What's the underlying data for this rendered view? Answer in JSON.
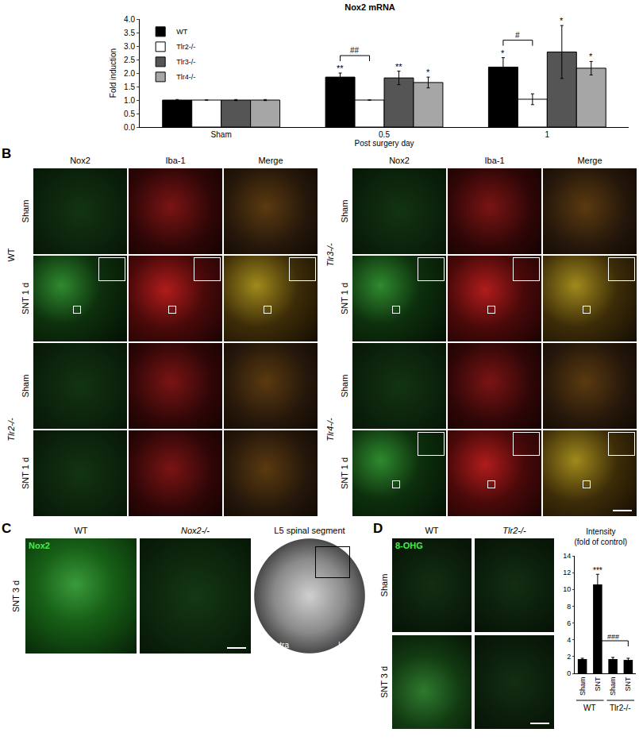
{
  "chart_data": [
    {
      "type": "bar",
      "panel": "A",
      "title": "Nox2 mRNA",
      "x_label": "Post surgery day",
      "y_label": "Fold induction",
      "categories": [
        "Sham",
        "0.5",
        "1"
      ],
      "series": [
        {
          "name": "WT",
          "color": "#000000",
          "values": [
            1.0,
            1.85,
            2.22
          ],
          "errors": [
            0.02,
            0.15,
            0.35
          ]
        },
        {
          "name": "Tlr2-/-",
          "color": "#ffffff",
          "values": [
            1.0,
            1.0,
            1.03
          ],
          "errors": [
            0.0,
            0.0,
            0.2
          ]
        },
        {
          "name": "Tlr3-/-",
          "color": "#555555",
          "values": [
            1.0,
            1.82,
            2.78
          ],
          "errors": [
            0.02,
            0.25,
            0.98
          ]
        },
        {
          "name": "Tlr4-/-",
          "color": "#a6a6a6",
          "values": [
            1.0,
            1.65,
            2.18
          ],
          "errors": [
            0.02,
            0.2,
            0.25
          ]
        }
      ],
      "ylim": [
        0,
        4
      ],
      "yticks": [
        {
          "value": 0,
          "label": "0.0"
        },
        0.5,
        {
          "value": 1,
          "label": "1.0"
        },
        1.5,
        {
          "value": 2,
          "label": "2.0"
        },
        2.5,
        {
          "value": 3,
          "label": "3.0"
        },
        3.5,
        {
          "value": 4,
          "label": "4.0"
        }
      ],
      "legend": "top-left",
      "annotations": [
        {
          "text": "**",
          "category": "0.5",
          "series": "WT"
        },
        {
          "text": "**",
          "category": "0.5",
          "series": "Tlr3-/-"
        },
        {
          "text": "*",
          "category": "0.5",
          "series": "Tlr4-/-"
        },
        {
          "text": "*",
          "category": "1",
          "series": "WT"
        },
        {
          "text": "*",
          "category": "1",
          "series": "Tlr3-/-"
        },
        {
          "text": "*",
          "category": "1",
          "series": "Tlr4-/-"
        }
      ],
      "brackets": [
        {
          "text": "##",
          "category": "0.5",
          "from": "WT",
          "to": "Tlr2-/-"
        },
        {
          "text": "#",
          "category": "1",
          "from": "WT",
          "to": "Tlr2-/-"
        }
      ]
    },
    {
      "type": "bar",
      "panel": "D",
      "title": [
        "Intensity",
        "(fold of control)"
      ],
      "categories": [
        "Sham",
        "SNT",
        "Sham",
        "SNT"
      ],
      "groups": [
        {
          "label": "WT",
          "size": 2
        },
        {
          "label": "Tlr2-/-",
          "size": 2
        }
      ],
      "values": [
        1.7,
        10.6,
        1.7,
        1.6
      ],
      "errors": [
        0.1,
        1.2,
        0.2,
        0.2
      ],
      "color": "#000000",
      "ylim": [
        0,
        14
      ],
      "yticks": [
        0,
        2,
        4,
        6,
        8,
        10,
        12,
        14
      ],
      "annotations": [
        {
          "text": "***",
          "index": 1
        }
      ],
      "brackets": [
        {
          "text": "###",
          "from": 1,
          "to": 3
        }
      ]
    }
  ],
  "figure": {
    "B": {
      "label": "B",
      "blocks": [
        {
          "channels": [
            "Nox2",
            "Iba-1",
            "Merge"
          ],
          "groups": [
            {
              "genotype": "WT",
              "rows": [
                {
                  "condition": "Sham"
                },
                {
                  "condition": "SNT 1 d",
                  "inset": true
                }
              ]
            },
            {
              "genotype": "Tlr2-/-",
              "rows": [
                {
                  "condition": "Sham"
                },
                {
                  "condition": "SNT 1 d"
                }
              ]
            }
          ]
        },
        {
          "channels": [
            "Nox2",
            "Iba-1",
            "Merge"
          ],
          "groups": [
            {
              "genotype": "Tlr3-/-",
              "rows": [
                {
                  "condition": "Sham"
                },
                {
                  "condition": "SNT 1 d",
                  "inset": true
                }
              ]
            },
            {
              "genotype": "Tlr4-/-",
              "rows": [
                {
                  "condition": "Sham"
                },
                {
                  "condition": "SNT 1 d",
                  "inset": true
                }
              ]
            }
          ]
        }
      ]
    },
    "C": {
      "label": "C",
      "row": "SNT 3 d",
      "columns": [
        "WT",
        "Nox2-/-",
        "L5 spinal segment"
      ],
      "stain": "Nox2",
      "sides": [
        "Contra",
        "Ipsi"
      ]
    },
    "D": {
      "label": "D",
      "columns": [
        "WT",
        "Tlr2-/-"
      ],
      "rows": [
        "Sham",
        "SNT 3 d"
      ],
      "stain": "8-OHG"
    }
  }
}
